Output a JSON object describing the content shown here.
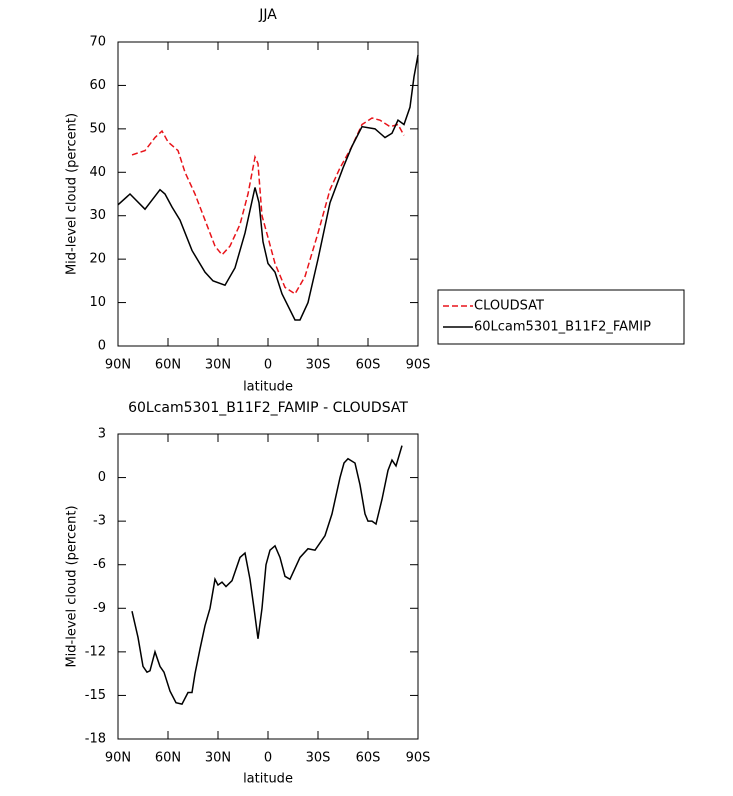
{
  "chart_data": [
    {
      "type": "line",
      "title": "JJA",
      "xlabel": "latitude",
      "ylabel": "Mid-level cloud (percent)",
      "xlim": [
        90,
        -90
      ],
      "ylim": [
        0,
        70
      ],
      "xticks": [
        {
          "value": 90,
          "label": "90N"
        },
        {
          "value": 60,
          "label": "60N"
        },
        {
          "value": 30,
          "label": "30N"
        },
        0,
        {
          "value": -30,
          "label": "30S"
        },
        {
          "value": -60,
          "label": "60S"
        },
        {
          "value": -90,
          "label": "90S"
        }
      ],
      "yticks": [
        0,
        10,
        20,
        30,
        40,
        50,
        60,
        70
      ],
      "legend": "outside-right",
      "series": [
        {
          "name": "CLOUDSAT",
          "color": "#e8141a",
          "style": "dashed",
          "x": [
            81.6,
            73.8,
            67.8,
            63.6,
            60,
            54,
            49.8,
            43.8,
            37.8,
            31.8,
            27.6,
            22.8,
            16.8,
            12,
            7.8,
            6,
            3.6,
            0,
            -4.2,
            -10.2,
            -16.2,
            -22.2,
            -30,
            -37.2,
            -43.2,
            -50.4,
            -56.4,
            -62.4,
            -67.2,
            -73.2,
            -78,
            -81.6
          ],
          "values": [
            44,
            45,
            48,
            49.5,
            47,
            45,
            40,
            35,
            29,
            23,
            21,
            23,
            28,
            35,
            43.5,
            42,
            30,
            25,
            19,
            13.5,
            12,
            16,
            26,
            36,
            41,
            46,
            51,
            52.5,
            52,
            50.5,
            51,
            48.5
          ]
        },
        {
          "name": "60Lcam5301_B11F2_FAMIP",
          "color": "#000000",
          "style": "solid",
          "x": [
            90,
            82.8,
            73.8,
            64.8,
            61.8,
            57.6,
            52.8,
            45.6,
            37.8,
            33,
            25.8,
            19.8,
            13.8,
            7.8,
            5.4,
            3,
            0,
            -4.2,
            -8.4,
            -16.2,
            -19.2,
            -24,
            -30,
            -37.2,
            -45,
            -50.4,
            -56.4,
            -64.2,
            -70.2,
            -74.4,
            -78,
            -81.6,
            -85.2,
            -87.6,
            -90
          ],
          "values": [
            32.5,
            35,
            31.5,
            36,
            35,
            32,
            29,
            22,
            17,
            15,
            14,
            18,
            26,
            36.5,
            33,
            24,
            19,
            17,
            12,
            6,
            6,
            10,
            20,
            33,
            41,
            46,
            50.5,
            50,
            48,
            49,
            52,
            51,
            55,
            62,
            67
          ]
        }
      ]
    },
    {
      "type": "line",
      "title": "60Lcam5301_B11F2_FAMIP - CLOUDSAT",
      "xlabel": "latitude",
      "ylabel": "Mid-level cloud (percent)",
      "xlim": [
        90,
        -90
      ],
      "ylim": [
        -18,
        3
      ],
      "xticks": [
        {
          "value": 90,
          "label": "90N"
        },
        {
          "value": 60,
          "label": "60N"
        },
        {
          "value": 30,
          "label": "30N"
        },
        0,
        {
          "value": -30,
          "label": "30S"
        },
        {
          "value": -60,
          "label": "60S"
        },
        {
          "value": -90,
          "label": "90S"
        }
      ],
      "yticks": [
        3,
        0,
        -3,
        -6,
        -9,
        -12,
        -15,
        -18
      ],
      "series": [
        {
          "color": "#000000",
          "style": "solid",
          "x": [
            81.6,
            78,
            75,
            72.6,
            70.8,
            67.8,
            64.8,
            62.4,
            58.8,
            55.2,
            51.6,
            48,
            45.6,
            43.8,
            40.8,
            37.8,
            34.8,
            31.8,
            30,
            27.6,
            25.2,
            21.6,
            16.8,
            13.8,
            10.8,
            8.4,
            6,
            3.6,
            1.2,
            -1.2,
            -4.2,
            -7.2,
            -10.2,
            -13.2,
            -19.2,
            -24,
            -28.2,
            -34.2,
            -38.4,
            -43.2,
            -45.6,
            -48,
            -52.2,
            -55.2,
            -58.2,
            -60,
            -62.4,
            -64.8,
            -68.4,
            -72,
            -74.4,
            -76.8,
            -80.4
          ],
          "values": [
            -9.2,
            -11,
            -13,
            -13.4,
            -13.3,
            -12,
            -13,
            -13.4,
            -14.7,
            -15.5,
            -15.6,
            -14.8,
            -14.8,
            -13.5,
            -11.8,
            -10.2,
            -9,
            -7,
            -7.4,
            -7.2,
            -7.5,
            -7.1,
            -5.5,
            -5.2,
            -7,
            -9,
            -11.1,
            -9,
            -6,
            -5,
            -4.7,
            -5.5,
            -6.8,
            -7,
            -5.5,
            -4.9,
            -5,
            -4,
            -2.5,
            0,
            1,
            1.3,
            1,
            -0.5,
            -2.5,
            -3,
            -3,
            -3.2,
            -1.5,
            0.5,
            1.2,
            0.8,
            2.2
          ]
        }
      ]
    }
  ]
}
